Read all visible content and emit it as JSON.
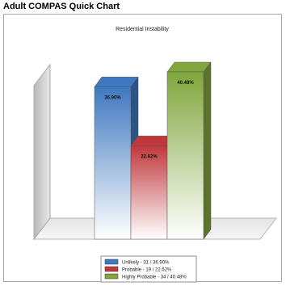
{
  "window": {
    "title": "Adult COMPAS Quick Chart"
  },
  "chart_data": {
    "type": "bar",
    "title": "Residential Instability",
    "categories": [
      "Unlikely",
      "Probable",
      "Highly Probable"
    ],
    "values": [
      36.9,
      22.62,
      40.48
    ],
    "counts": [
      31,
      19,
      34
    ],
    "value_labels": [
      "36.90%",
      "22.62%",
      "40.48%"
    ],
    "legend_labels": [
      "Unlikely - 31 / 36.90%",
      "Probable - 19 / 22.62%",
      "Highly Probable - 34 / 40.48%"
    ],
    "colors": [
      "#3f78c0",
      "#c0383c",
      "#80a63c"
    ],
    "legend_position": "bottom",
    "grid": false,
    "ylim": [
      0,
      40.48
    ]
  }
}
